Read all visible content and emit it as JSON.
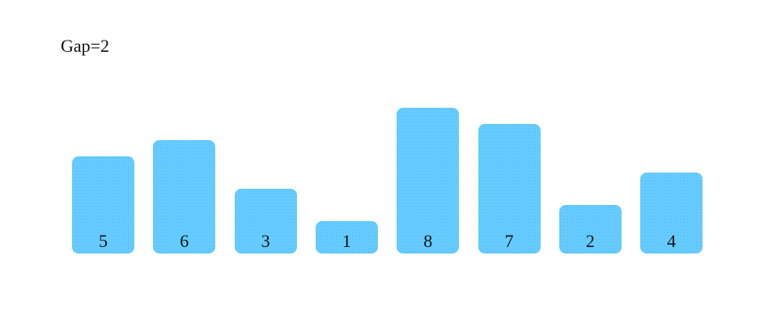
{
  "header": {
    "gap_text": "Gap=2"
  },
  "chart_data": {
    "type": "bar",
    "values": [
      5,
      6,
      3,
      1,
      8,
      7,
      2,
      4
    ],
    "data_labels": [
      "5",
      "6",
      "3",
      "1",
      "8",
      "7",
      "2",
      "4"
    ],
    "bar_color": "#66ccff"
  }
}
